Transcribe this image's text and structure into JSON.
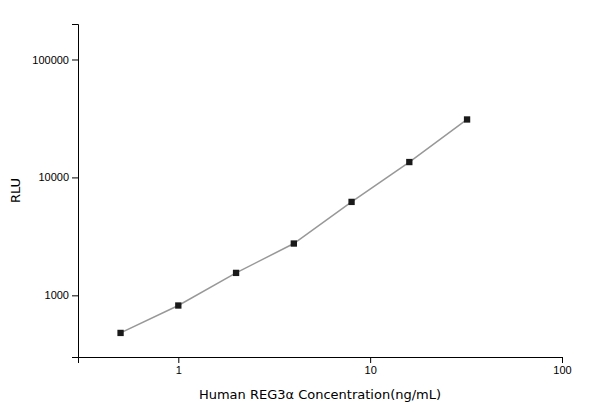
{
  "chart_data": {
    "type": "line",
    "x": [
      0.5,
      1.0,
      2.0,
      4.0,
      8.0,
      16.0,
      32.0
    ],
    "values": [
      480,
      820,
      1550,
      2750,
      6200,
      13500,
      31000
    ],
    "xlabel": "Human REG3α  Concentration(ng/mL)",
    "ylabel": "RLU",
    "xlim": [
      0.3,
      100
    ],
    "ylim": [
      300,
      200000
    ],
    "xticks": [
      1,
      10,
      100
    ],
    "yticks": [
      1000,
      10000,
      100000
    ],
    "log": true,
    "grid": false,
    "color": "#1a1a1a",
    "marker": "square"
  }
}
